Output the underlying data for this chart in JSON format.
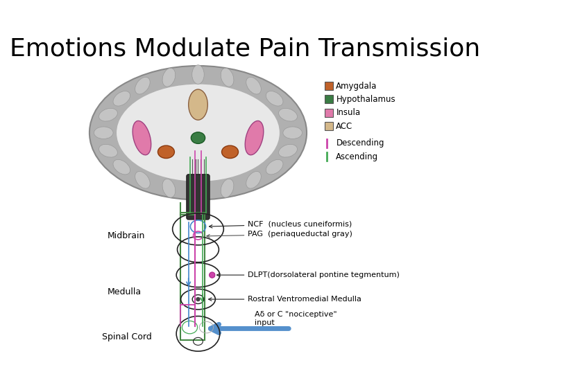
{
  "title": "Emotions Modulate Pain Transmission",
  "title_fontsize": 26,
  "background_color": "#ffffff",
  "legend_items": [
    {
      "label": "Amygdala",
      "color": "#c0622a"
    },
    {
      "label": "Hypothalamus",
      "color": "#3a7d44"
    },
    {
      "label": "Insula",
      "color": "#e07aaa"
    },
    {
      "label": "ACC",
      "color": "#d4b88a"
    }
  ],
  "legend_line_items": [
    {
      "label": "Descending",
      "color": "#cc44aa"
    },
    {
      "label": "Ascending",
      "color": "#44aa55"
    }
  ],
  "labels": {
    "midbrain": "Midbrain",
    "medulla": "Medulla",
    "spinal_cord": "Spinal Cord",
    "ncf": "NCF  (nucleus cuneiformis)",
    "pag": "PAG  (periaqueductal gray)",
    "dlpt": "DLPT(dorsolateral pontine tegmentum)",
    "rvm": "Rostral Ventromedial Medulla",
    "nociceptive": "Aδ or C \"nociceptive\"\ninput"
  },
  "desc_color": "#cc44aa",
  "asc_color": "#44aa55",
  "blue_color": "#4488cc",
  "green_color": "#448844"
}
